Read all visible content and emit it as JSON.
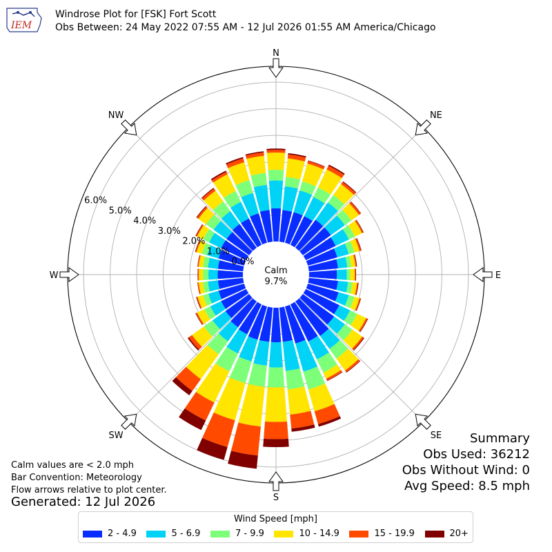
{
  "header": {
    "title": "Windrose Plot for [FSK] Fort Scott",
    "subtitle": "Obs Between: 24 May 2022 07:55 AM - 12 Jul 2026 01:55 AM America/Chicago",
    "logo_text": "IEM"
  },
  "notes": {
    "calm_def": "Calm values are < 2.0 mph",
    "bar_convention": "Bar Convention: Meteorology",
    "flow_arrows": "Flow arrows relative to plot center.",
    "generated": "Generated: 12 Jul 2026"
  },
  "summary": {
    "title": "Summary",
    "obs_used": "Obs Used: 36212",
    "obs_without_wind": "Obs Without Wind: 0",
    "avg_speed": "Avg Speed: 8.5 mph"
  },
  "legend": {
    "title": "Wind Speed [mph]",
    "items": [
      {
        "label": "2 - 4.9",
        "color": "#0a2dff"
      },
      {
        "label": "5 - 6.9",
        "color": "#00d3f5"
      },
      {
        "label": "7 - 9.9",
        "color": "#7dff7a"
      },
      {
        "label": "10 - 14.9",
        "color": "#ffe500"
      },
      {
        "label": "15 - 19.9",
        "color": "#ff4a00"
      },
      {
        "label": "20+",
        "color": "#800000"
      }
    ]
  },
  "colors": {
    "grid": "#b0b0b0",
    "frame": "#000000",
    "arrow_fill": "#ffffff"
  },
  "chart_data": {
    "type": "windrose",
    "calm_label": "Calm",
    "calm_value": "9.7%",
    "radial_unit": "%",
    "radial_ticks": [
      0,
      1,
      2,
      3,
      4,
      5,
      6
    ],
    "radial_tick_labels": [
      "0.0%",
      "1.0%",
      "2.0%",
      "3.0%",
      "4.0%",
      "5.0%",
      "6.0%"
    ],
    "rmax": 6.6,
    "compass_labels": [
      "N",
      "NE",
      "E",
      "SE",
      "S",
      "SW",
      "W",
      "NW"
    ],
    "speed_bins": [
      "2 - 4.9",
      "5 - 6.9",
      "7 - 9.9",
      "10 - 14.9",
      "15 - 19.9",
      "20+"
    ],
    "direction_degrees": [
      0,
      10,
      20,
      30,
      40,
      50,
      60,
      70,
      80,
      90,
      100,
      110,
      120,
      130,
      140,
      150,
      160,
      170,
      180,
      190,
      200,
      210,
      220,
      230,
      240,
      250,
      260,
      270,
      280,
      290,
      300,
      310,
      320,
      330,
      340,
      350
    ],
    "cumulative_values": [
      [
        1.25,
        2.3,
        2.7,
        3.35,
        3.45,
        3.5
      ],
      [
        1.2,
        2.1,
        2.45,
        3.15,
        3.3,
        3.35
      ],
      [
        1.2,
        2.05,
        2.4,
        3.1,
        3.2,
        3.22
      ],
      [
        1.2,
        2.0,
        2.4,
        3.15,
        3.3,
        3.35
      ],
      [
        1.3,
        2.1,
        2.45,
        2.95,
        3.05,
        3.08
      ],
      [
        1.3,
        1.95,
        2.25,
        2.6,
        2.68,
        2.7
      ],
      [
        1.25,
        1.8,
        2.05,
        2.35,
        2.4,
        2.42
      ],
      [
        1.15,
        1.6,
        1.82,
        2.02,
        2.08,
        2.1
      ],
      [
        1.1,
        1.45,
        1.6,
        1.76,
        1.8,
        1.82
      ],
      [
        1.05,
        1.42,
        1.55,
        1.72,
        1.75,
        1.77
      ],
      [
        1.1,
        1.48,
        1.65,
        1.82,
        1.86,
        1.88
      ],
      [
        1.2,
        1.6,
        1.82,
        2.02,
        2.06,
        2.08
      ],
      [
        1.4,
        1.85,
        2.15,
        2.52,
        2.58,
        2.6
      ],
      [
        1.45,
        1.95,
        2.3,
        2.75,
        2.82,
        2.85
      ],
      [
        1.6,
        2.2,
        2.65,
        3.2,
        3.28,
        3.3
      ],
      [
        1.55,
        2.3,
        2.85,
        3.1,
        3.18,
        3.2
      ],
      [
        1.45,
        2.55,
        3.25,
        4.1,
        4.6,
        4.7
      ],
      [
        1.3,
        2.4,
        3.1,
        4.05,
        4.58,
        4.7
      ],
      [
        1.3,
        2.25,
        3.0,
        4.3,
        4.95,
        5.25
      ],
      [
        1.3,
        2.2,
        3.0,
        4.5,
        5.6,
        6.1
      ],
      [
        1.3,
        2.15,
        3.0,
        4.45,
        5.5,
        6.0
      ],
      [
        1.25,
        2.05,
        2.8,
        4.1,
        4.85,
        5.25
      ],
      [
        1.2,
        1.85,
        2.45,
        3.6,
        4.15,
        4.35
      ],
      [
        1.1,
        1.7,
        2.1,
        2.65,
        2.8,
        2.85
      ],
      [
        1.05,
        1.5,
        1.75,
        2.05,
        2.1,
        2.12
      ],
      [
        1.0,
        1.4,
        1.6,
        1.82,
        1.86,
        1.88
      ],
      [
        0.95,
        1.33,
        1.52,
        1.68,
        1.72,
        1.73
      ],
      [
        0.95,
        1.3,
        1.5,
        1.66,
        1.7,
        1.71
      ],
      [
        0.95,
        1.33,
        1.52,
        1.68,
        1.72,
        1.73
      ],
      [
        1.0,
        1.45,
        1.65,
        1.86,
        1.9,
        1.92
      ],
      [
        1.05,
        1.55,
        1.8,
        2.05,
        2.1,
        2.12
      ],
      [
        1.05,
        1.65,
        2.0,
        2.35,
        2.42,
        2.45
      ],
      [
        1.1,
        1.7,
        2.15,
        2.65,
        2.75,
        2.78
      ],
      [
        1.1,
        1.8,
        2.25,
        2.95,
        3.05,
        3.1
      ],
      [
        1.15,
        1.95,
        2.45,
        3.15,
        3.3,
        3.35
      ],
      [
        1.2,
        2.15,
        2.6,
        3.25,
        3.38,
        3.42
      ]
    ]
  }
}
